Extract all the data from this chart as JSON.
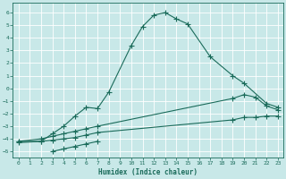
{
  "xlabel": "Humidex (Indice chaleur)",
  "background_color": "#c8e8e8",
  "grid_color": "#b0d0d0",
  "line_color": "#1a6b5a",
  "xlim": [
    -0.5,
    23.5
  ],
  "ylim": [
    -5.5,
    6.8
  ],
  "xticks": [
    0,
    1,
    2,
    3,
    4,
    5,
    6,
    7,
    8,
    9,
    10,
    11,
    12,
    13,
    14,
    15,
    16,
    17,
    18,
    19,
    20,
    21,
    22,
    23
  ],
  "yticks": [
    -5,
    -4,
    -3,
    -2,
    -1,
    0,
    1,
    2,
    3,
    4,
    5,
    6
  ],
  "curve1_x": [
    0,
    2,
    3,
    4,
    5,
    6,
    7,
    8,
    10,
    11,
    12,
    13,
    14,
    15,
    17,
    19,
    20,
    22,
    23
  ],
  "curve1_y": [
    -4.2,
    -4.2,
    -3.6,
    -3.0,
    -2.2,
    -1.5,
    -1.6,
    -0.3,
    3.4,
    4.9,
    5.8,
    6.0,
    5.5,
    5.1,
    2.5,
    1.0,
    0.4,
    -1.2,
    -1.5
  ],
  "curve2_x": [
    0,
    2,
    3,
    4,
    5,
    6,
    7,
    19,
    20,
    21,
    22,
    23
  ],
  "curve2_y": [
    -4.2,
    -4.0,
    -3.8,
    -3.6,
    -3.4,
    -3.2,
    -3.0,
    -0.8,
    -0.5,
    -0.7,
    -1.4,
    -1.7
  ],
  "curve3_x": [
    0,
    2,
    3,
    4,
    5,
    6,
    7,
    19,
    20,
    21,
    22,
    23
  ],
  "curve3_y": [
    -4.3,
    -4.2,
    -4.1,
    -4.0,
    -3.9,
    -3.7,
    -3.5,
    -2.5,
    -2.3,
    -2.3,
    -2.2,
    -2.2
  ],
  "curve4_x": [
    3,
    4,
    5,
    6,
    7
  ],
  "curve4_y": [
    -5.0,
    -4.8,
    -4.6,
    -4.4,
    -4.2
  ]
}
